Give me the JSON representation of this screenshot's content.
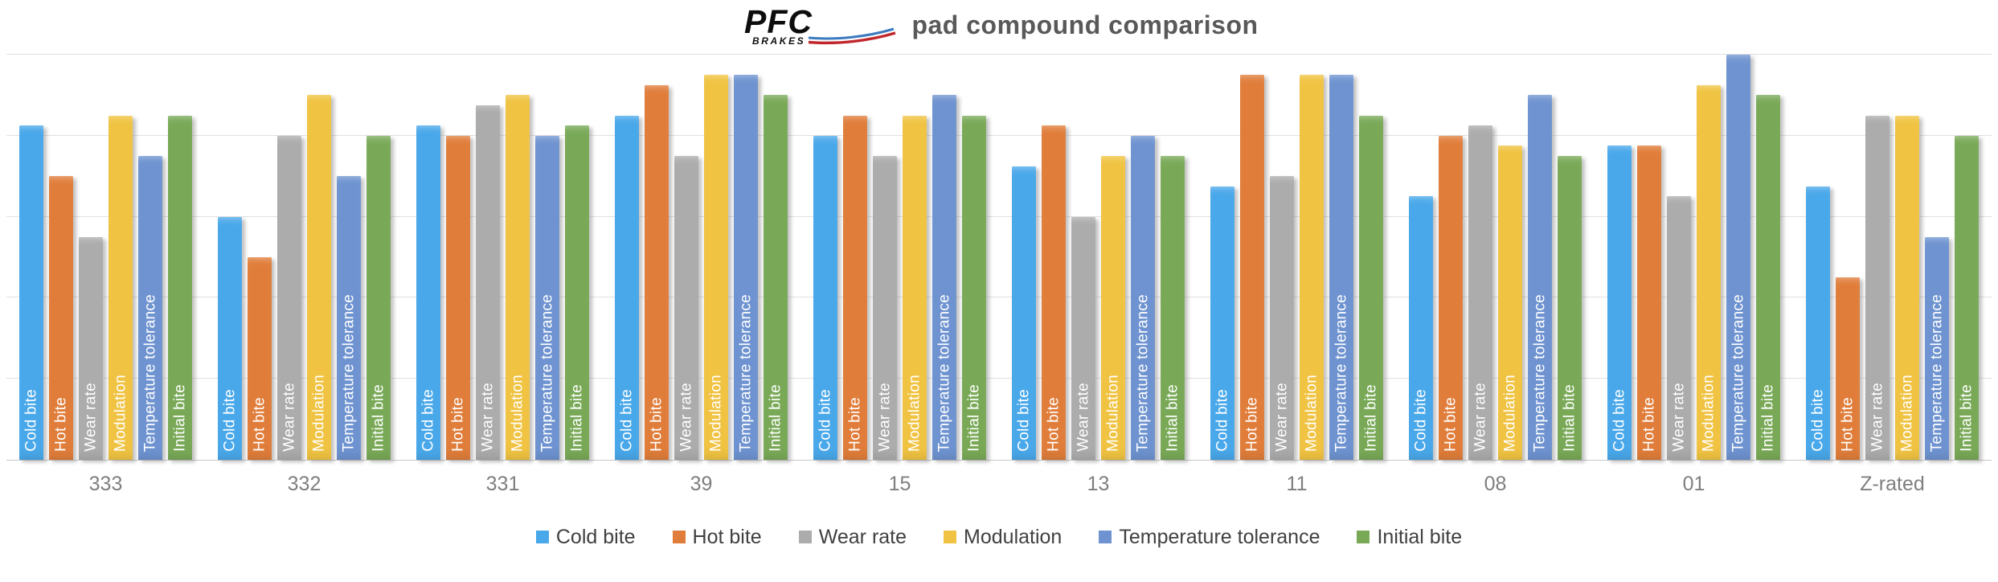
{
  "title": {
    "text": "pad compound comparison",
    "logo_brand": "PFC",
    "logo_sub": "BRAKES",
    "logo_colors": {
      "text": "#0d0d0d",
      "stripe_blue": "#3a7abf",
      "stripe_red": "#c0272d"
    }
  },
  "chart_data": {
    "type": "bar",
    "title": "pad compound comparison",
    "categories": [
      "333",
      "332",
      "331",
      "39",
      "15",
      "13",
      "11",
      "08",
      "01",
      "Z-rated"
    ],
    "series": [
      {
        "name": "Cold bite",
        "color": "#49a8ea",
        "values": [
          8.25,
          6,
          8.25,
          8.5,
          8,
          7.25,
          6.75,
          6.5,
          7.75,
          6.75
        ]
      },
      {
        "name": "Hot bite",
        "color": "#e07d3a",
        "values": [
          7,
          5,
          8,
          9.25,
          8.5,
          8.25,
          9.5,
          8,
          7.75,
          4.5
        ]
      },
      {
        "name": "Wear rate",
        "color": "#acacac",
        "values": [
          5.5,
          8,
          8.75,
          7.5,
          7.5,
          6,
          7,
          8.25,
          6.5,
          8.5
        ]
      },
      {
        "name": "Modulation",
        "color": "#f0c342",
        "values": [
          8.5,
          9,
          9,
          9.5,
          8.5,
          7.5,
          9.5,
          7.75,
          9.25,
          8.5
        ]
      },
      {
        "name": "Temperature tolerance",
        "color": "#6e93d0",
        "values": [
          7.5,
          7,
          8,
          9.5,
          9,
          8,
          9.5,
          9,
          10,
          5.5
        ]
      },
      {
        "name": "Initial bite",
        "color": "#79a957",
        "values": [
          8.5,
          8,
          8.25,
          9,
          8.5,
          7.5,
          8.5,
          7.5,
          9,
          8
        ]
      }
    ],
    "xlabel": "",
    "ylabel": "",
    "ylim": [
      0,
      10
    ],
    "gridline_values": [
      2,
      4,
      6,
      8,
      10
    ],
    "grid": "horizontal, light gray, no y-axis tick labels",
    "bar_labels": "series name repeated inside every bar, rotated 90deg, white",
    "legend_position": "bottom-center"
  }
}
